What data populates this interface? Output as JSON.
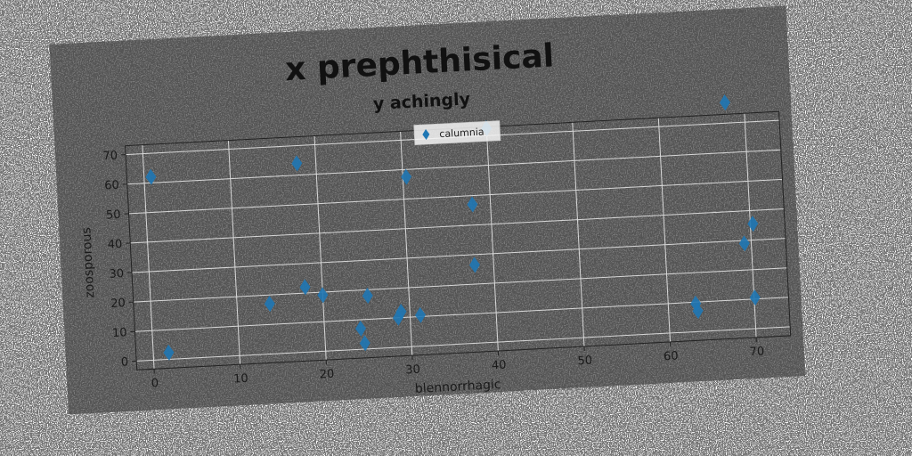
{
  "chart_data": {
    "type": "scatter",
    "title": "x prephthisical",
    "subtitle": "y achingly",
    "xlabel": "blennorrhagic",
    "ylabel": "zoosporous",
    "xlim": [
      -2,
      74
    ],
    "ylim": [
      -3,
      73
    ],
    "xticks": [
      0,
      10,
      20,
      30,
      40,
      50,
      60,
      70
    ],
    "yticks": [
      0,
      10,
      20,
      30,
      40,
      50,
      60,
      70
    ],
    "grid": true,
    "legend_position": "top-center",
    "series": [
      {
        "name": "calumnia",
        "marker": "diamond",
        "color": "#1f77b4",
        "x": [
          0.8,
          1.8,
          13.8,
          17.8,
          18.0,
          20.0,
          24.2,
          24.6,
          25.2,
          28.6,
          29.0,
          30.4,
          31.2,
          37.8,
          37.9,
          40.0,
          63.2,
          63.4,
          67.8,
          69.2,
          70.1,
          70.3
        ],
        "y": [
          62.0,
          2.3,
          17.0,
          64.0,
          22.0,
          19.0,
          7.0,
          2.0,
          18.0,
          10.0,
          12.0,
          57.5,
          10.5,
          26.5,
          47.0,
          72.5,
          9.5,
          7.0,
          77.0,
          29.0,
          10.5,
          35.5
        ]
      }
    ]
  }
}
